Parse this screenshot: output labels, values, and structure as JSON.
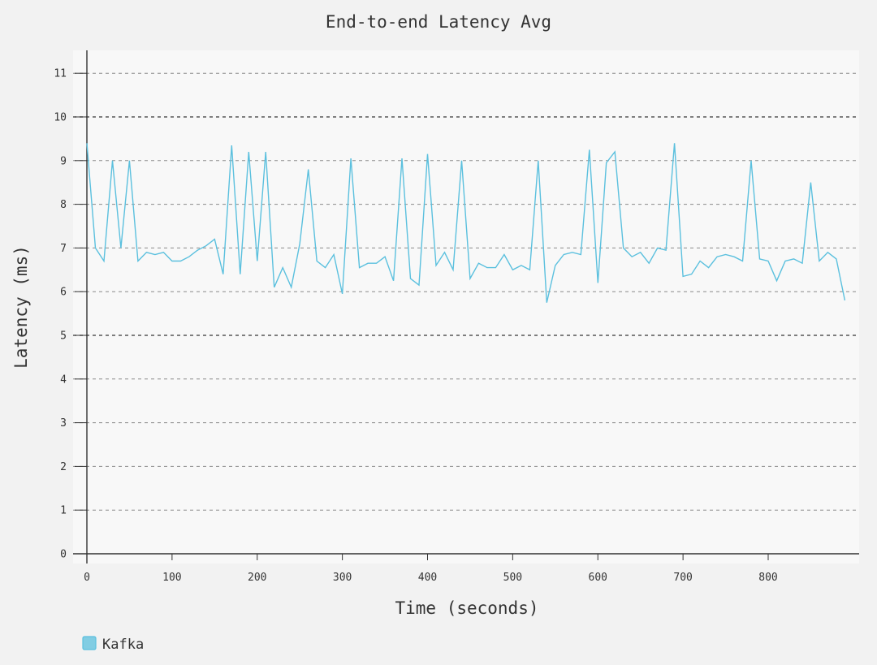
{
  "chart_data": {
    "type": "line",
    "title": "End-to-end Latency Avg",
    "xlabel": "Time (seconds)",
    "ylabel": "Latency (ms)",
    "xlim": [
      0,
      900
    ],
    "ylim": [
      0,
      11.5
    ],
    "xticks": [
      0,
      100,
      200,
      300,
      400,
      500,
      600,
      700,
      800
    ],
    "yticks": [
      0,
      1,
      2,
      3,
      4,
      5,
      6,
      7,
      8,
      9,
      10,
      11
    ],
    "grid": true,
    "legend_position": "bottom-left",
    "series": [
      {
        "name": "Kafka",
        "color": "#5bc0de",
        "x": [
          0,
          10,
          20,
          30,
          40,
          50,
          60,
          70,
          80,
          90,
          100,
          110,
          120,
          130,
          140,
          150,
          160,
          170,
          180,
          190,
          200,
          210,
          220,
          230,
          240,
          250,
          260,
          270,
          280,
          290,
          300,
          310,
          320,
          330,
          340,
          350,
          360,
          370,
          380,
          390,
          400,
          410,
          420,
          430,
          440,
          450,
          460,
          470,
          480,
          490,
          500,
          510,
          520,
          530,
          540,
          550,
          560,
          570,
          580,
          590,
          600,
          610,
          620,
          630,
          640,
          650,
          660,
          670,
          680,
          690,
          700,
          710,
          720,
          730,
          740,
          750,
          760,
          770,
          780,
          790,
          800,
          810,
          820,
          830,
          840,
          850,
          860,
          870,
          880,
          890
        ],
        "y": [
          9.4,
          7.0,
          6.7,
          9.0,
          7.0,
          9.0,
          6.7,
          6.9,
          6.85,
          6.9,
          6.7,
          6.7,
          6.8,
          6.95,
          7.05,
          7.2,
          6.4,
          9.35,
          6.4,
          9.2,
          6.7,
          9.2,
          6.1,
          6.55,
          6.1,
          7.1,
          8.8,
          6.7,
          6.55,
          6.85,
          5.95,
          9.05,
          6.55,
          6.65,
          6.65,
          6.8,
          6.25,
          9.05,
          6.3,
          6.15,
          9.15,
          6.6,
          6.9,
          6.5,
          9.0,
          6.3,
          6.65,
          6.55,
          6.55,
          6.85,
          6.5,
          6.6,
          6.5,
          9.0,
          5.75,
          6.6,
          6.85,
          6.9,
          6.85,
          9.25,
          6.2,
          8.95,
          9.2,
          7.0,
          6.8,
          6.9,
          6.65,
          7.0,
          6.95,
          9.4,
          6.35,
          6.4,
          6.7,
          6.55,
          6.8,
          6.85,
          6.8,
          6.7,
          9.0,
          6.75,
          6.7,
          6.25,
          6.7,
          6.75,
          6.65,
          8.5,
          6.7,
          6.9,
          6.75,
          5.8
        ]
      }
    ]
  }
}
